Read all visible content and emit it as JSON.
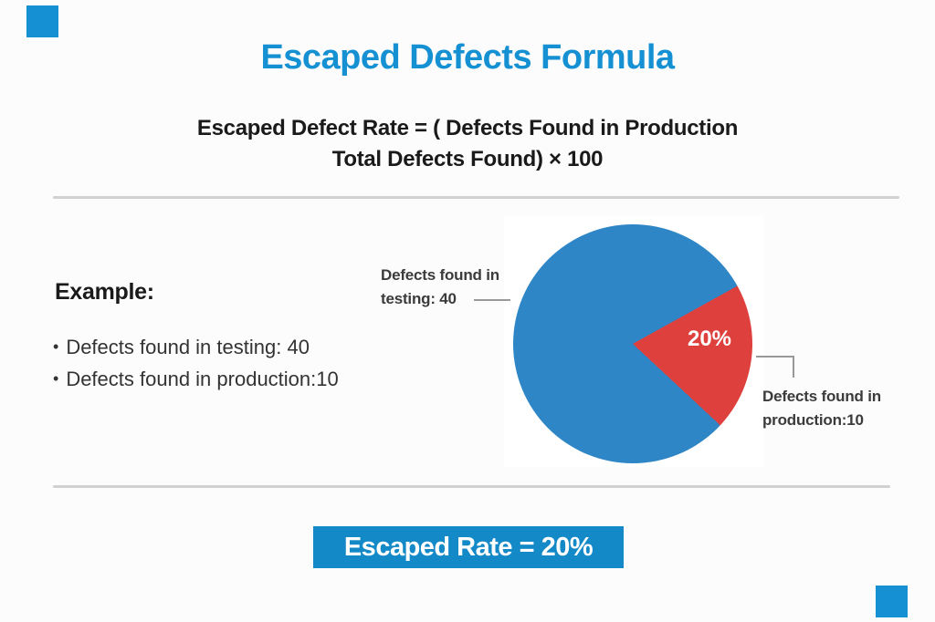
{
  "page": {
    "title": "Escaped Defects Formula",
    "formula_line1": "Escaped Defect Rate = ( Defects Found in Production",
    "formula_line2": "Total Defects Found) × 100"
  },
  "example": {
    "heading": "Example:",
    "bullet_glyph": "•",
    "bullets": [
      "Defects found in testing: 40",
      "Defects found in production:10"
    ]
  },
  "pie": {
    "left_label_line1": "Defects found in",
    "left_label_line2": "testing: 40",
    "right_label_line1": "Defects found in",
    "right_label_line2": "production:10",
    "slice_label": "20%"
  },
  "result": {
    "label": "Escaped Rate = 20%"
  },
  "colors": {
    "accent_blue": "#1591d3",
    "banner_blue": "#1489c8",
    "pie_blue": "#2e86c6",
    "pie_red": "#de413d",
    "divider_gray": "#d1d1d1",
    "text_dark": "#1a1a1a",
    "text_body": "#333333",
    "label_gray": "#3b3b3b",
    "connector_gray": "#999999",
    "white": "#ffffff"
  },
  "chart_data": {
    "type": "pie",
    "title": "Escaped Defects Formula",
    "labels": [
      "Defects found in testing",
      "Defects found in production"
    ],
    "values": [
      40,
      10
    ],
    "percentages": [
      80,
      20
    ],
    "colors": [
      "#2e86c6",
      "#de413d"
    ],
    "slice_annotation": "20%",
    "legend_position": "callout-labels",
    "red_slice_angles_deg": [
      61,
      133
    ]
  }
}
